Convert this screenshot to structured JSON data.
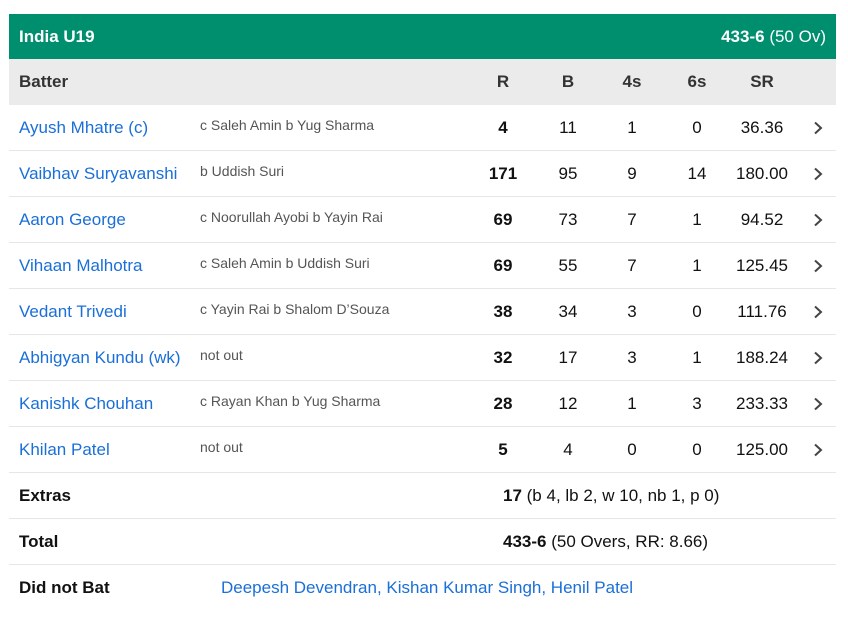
{
  "team": {
    "name": "India U19",
    "score": "433-6",
    "overs": "(50 Ov)"
  },
  "columns": {
    "batter": "Batter",
    "r": "R",
    "b": "B",
    "fours": "4s",
    "sixes": "6s",
    "sr": "SR"
  },
  "batters": [
    {
      "name": "Ayush Mhatre (c)",
      "dismissal": "c Saleh Amin b Yug Sharma",
      "r": "4",
      "b": "11",
      "fours": "1",
      "sixes": "0",
      "sr": "36.36"
    },
    {
      "name": "Vaibhav Suryavanshi",
      "dismissal": "b Uddish Suri",
      "r": "171",
      "b": "95",
      "fours": "9",
      "sixes": "14",
      "sr": "180.00"
    },
    {
      "name": "Aaron George",
      "dismissal": "c Noorullah Ayobi b Yayin Rai",
      "r": "69",
      "b": "73",
      "fours": "7",
      "sixes": "1",
      "sr": "94.52"
    },
    {
      "name": "Vihaan Malhotra",
      "dismissal": "c Saleh Amin b Uddish Suri",
      "r": "69",
      "b": "55",
      "fours": "7",
      "sixes": "1",
      "sr": "125.45"
    },
    {
      "name": "Vedant Trivedi",
      "dismissal": "c Yayin Rai b Shalom D’Souza",
      "r": "38",
      "b": "34",
      "fours": "3",
      "sixes": "0",
      "sr": "111.76"
    },
    {
      "name": "Abhigyan Kundu (wk)",
      "dismissal": "not out",
      "r": "32",
      "b": "17",
      "fours": "3",
      "sixes": "1",
      "sr": "188.24"
    },
    {
      "name": "Kanishk Chouhan",
      "dismissal": "c Rayan Khan b Yug Sharma",
      "r": "28",
      "b": "12",
      "fours": "1",
      "sixes": "3",
      "sr": "233.33"
    },
    {
      "name": "Khilan Patel",
      "dismissal": "not out",
      "r": "5",
      "b": "4",
      "fours": "0",
      "sixes": "0",
      "sr": "125.00"
    }
  ],
  "extras": {
    "label": "Extras",
    "value": "17",
    "detail": " (b 4, lb 2, w 10, nb 1, p 0)"
  },
  "total": {
    "label": "Total",
    "value": "433-6",
    "detail": " (50 Overs, RR: 8.66)"
  },
  "did_not_bat": {
    "label": "Did not Bat",
    "players": "Deepesh Devendran, Kishan Kumar Singh, Henil Patel"
  },
  "colors": {
    "header": "#008f6e",
    "link": "#1a6fd8",
    "column_header_bg": "#ebebeb"
  }
}
